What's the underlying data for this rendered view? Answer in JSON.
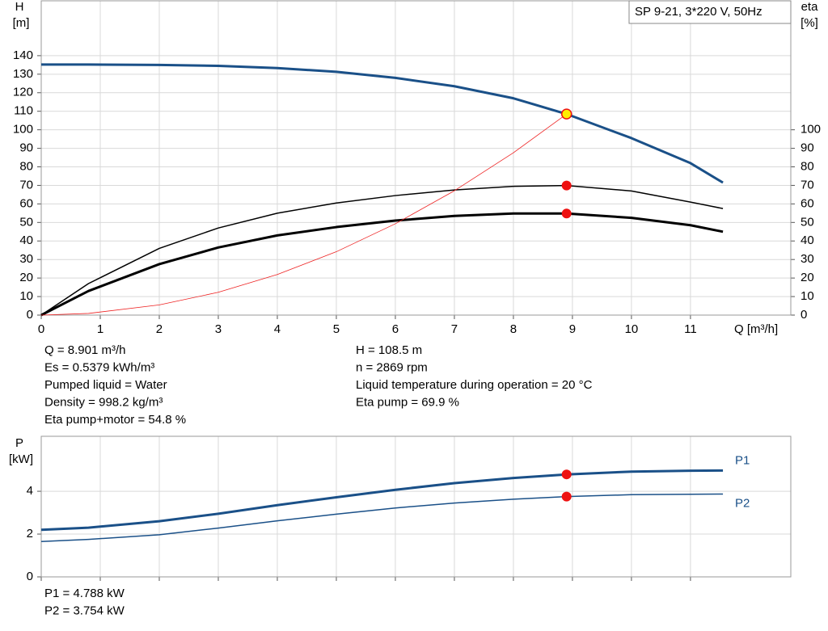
{
  "chart_data": [
    {
      "type": "line",
      "ylabel": "H",
      "yunit": "[m]",
      "y2label": "eta",
      "y2unit": "[%]",
      "xlabel": "Q [m³/h]",
      "legend_text": "SP 9-21, 3*220 V, 50Hz",
      "x": [
        0,
        0.8,
        2,
        3,
        4,
        5,
        6,
        7,
        8,
        8.901,
        10,
        11,
        11.55
      ],
      "series": [
        {
          "color": "#1a5088",
          "width": 3,
          "values": [
            135.2,
            135.2,
            135,
            134.5,
            133.3,
            131.3,
            128,
            123.5,
            117,
            108.5,
            95.5,
            82,
            71.5
          ]
        },
        {
          "color": "#000000",
          "width": 1.5,
          "axis": "y2",
          "values": [
            0,
            17,
            36,
            47,
            55,
            60.5,
            64.5,
            67.5,
            69.5,
            69.9,
            67,
            61,
            57.5
          ]
        },
        {
          "color": "#000000",
          "width": 3,
          "axis": "y2",
          "values": [
            0,
            13,
            27.5,
            36.5,
            43,
            47.5,
            51,
            53.5,
            54.8,
            54.8,
            52.5,
            48.5,
            45
          ]
        },
        {
          "color": "#ee2222",
          "width": 0.8,
          "values": [
            0,
            0.9,
            5.5,
            12.3,
            21.9,
            34.2,
            49.3,
            67.1,
            87.6,
            108.5,
            null,
            null,
            null
          ]
        }
      ],
      "points": [
        {
          "x": 8.901,
          "y": 108.5,
          "color": "#ffee00"
        },
        {
          "x": 8.901,
          "y": 69.9,
          "color": "#ee1111"
        },
        {
          "x": 8.901,
          "y": 54.8,
          "color": "#ee1111"
        }
      ],
      "xlim": [
        0,
        12.7
      ],
      "xticks": [
        0,
        1,
        2,
        3,
        4,
        5,
        6,
        7,
        8,
        9,
        10,
        11
      ],
      "ylim": [
        0,
        169.6
      ],
      "yticks": [
        0,
        10,
        20,
        30,
        40,
        50,
        60,
        70,
        80,
        90,
        100,
        110,
        120,
        130,
        140
      ],
      "y2lim": [
        0,
        169.6
      ],
      "y2ticks": [
        0,
        10,
        20,
        30,
        40,
        50,
        60,
        70,
        80,
        90,
        100
      ],
      "show_xtick_labels": true,
      "grid": true,
      "info_left": [
        "Q = 8.901 m³/h",
        "Es = 0.5379 kWh/m³",
        "Pumped liquid = Water",
        "Density = 998.2 kg/m³",
        "Eta pump+motor = 54.8 %"
      ],
      "info_right": [
        "H = 108.5 m",
        "n = 2869 rpm",
        "Liquid temperature during operation = 20 °C",
        "Eta pump = 69.9 %"
      ]
    },
    {
      "type": "line",
      "ylabel": "P",
      "yunit": "[kW]",
      "x": [
        0,
        0.8,
        2,
        3,
        4,
        5,
        6,
        7,
        8,
        8.901,
        10,
        11,
        11.55
      ],
      "series": [
        {
          "name": "P1",
          "color": "#1a5088",
          "width": 3,
          "values": [
            2.2,
            2.3,
            2.6,
            2.95,
            3.35,
            3.72,
            4.07,
            4.38,
            4.62,
            4.788,
            4.92,
            4.96,
            4.97
          ]
        },
        {
          "name": "P2",
          "color": "#1a5088",
          "width": 1.5,
          "values": [
            1.65,
            1.75,
            1.97,
            2.28,
            2.62,
            2.93,
            3.22,
            3.45,
            3.63,
            3.754,
            3.84,
            3.86,
            3.87
          ]
        }
      ],
      "points": [
        {
          "x": 8.901,
          "y": 4.788,
          "color": "#ee1111"
        },
        {
          "x": 8.901,
          "y": 3.754,
          "color": "#ee1111"
        }
      ],
      "xlim": [
        0,
        12.7
      ],
      "xticks": [
        0,
        1,
        2,
        3,
        4,
        5,
        6,
        7,
        8,
        9,
        10,
        11
      ],
      "ylim": [
        0,
        6.57
      ],
      "yticks": [
        0,
        2,
        4
      ],
      "show_xtick_labels": false,
      "grid": true,
      "info_left": [
        "P1 = 4.788 kW",
        "P2 = 3.754 kW"
      ]
    }
  ]
}
